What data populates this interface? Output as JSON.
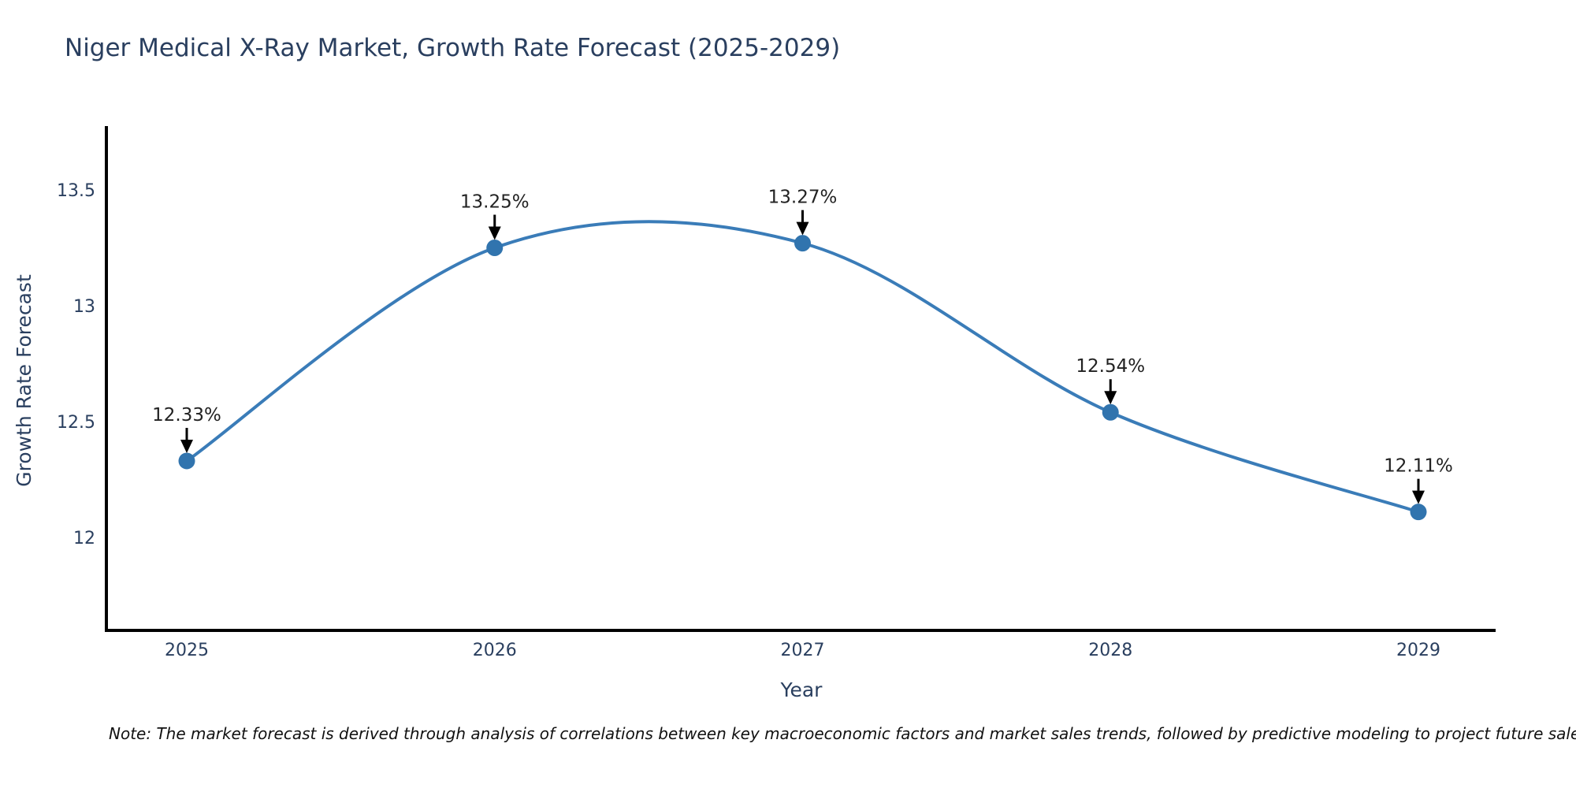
{
  "title": "Niger Medical X-Ray Market, Growth Rate Forecast (2025-2029)",
  "note": "Note: The market forecast is derived through analysis of correlations between key macroeconomic factors and market sales trends, followed by predictive modeling to project future sales.",
  "xaxis": {
    "title": "Year",
    "tick_labels": [
      "2025",
      "2026",
      "2027",
      "2028",
      "2029"
    ]
  },
  "yaxis": {
    "title": "Growth Rate Forecast",
    "tick_labels": [
      "12",
      "12.5",
      "13",
      "13.5"
    ]
  },
  "colors": {
    "line": "#3a7cb8",
    "marker": "#3174ae",
    "axis": "#000000",
    "axis_text": "#2a3f5f",
    "annotation_text": "#222222",
    "arrow": "#000000",
    "background": "#ffffff"
  },
  "chart_data": {
    "type": "line",
    "line_shape": "spline",
    "title": "Niger Medical X-Ray Market, Growth Rate Forecast (2025-2029)",
    "x": [
      2025,
      2026,
      2027,
      2028,
      2029
    ],
    "values": [
      12.33,
      13.25,
      13.27,
      12.54,
      12.11
    ],
    "point_labels": [
      "12.33%",
      "13.25%",
      "13.27%",
      "12.54%",
      "12.11%"
    ],
    "xlabel": "Year",
    "ylabel": "Growth Rate Forecast",
    "y_ticks": [
      12,
      12.5,
      13,
      13.5
    ],
    "xlim": [
      2024.74,
      2029.25
    ],
    "ylim": [
      11.6,
      13.78
    ],
    "grid": false,
    "legend": false,
    "annotations": "each point labeled with value and downward black arrow"
  }
}
